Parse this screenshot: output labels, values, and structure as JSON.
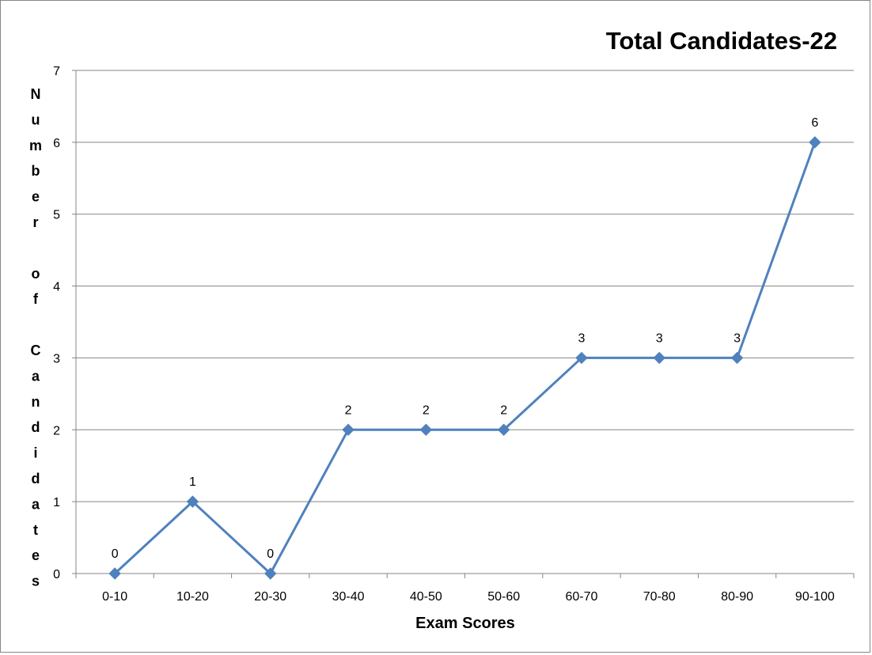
{
  "chart_data": {
    "type": "line",
    "title": "Total Candidates-22",
    "xlabel": "Exam Scores",
    "ylabel": "Number of Candidates",
    "categories": [
      "0-10",
      "10-20",
      "20-30",
      "30-40",
      "40-50",
      "50-60",
      "60-70",
      "70-80",
      "80-90",
      "90-100"
    ],
    "series": [
      {
        "values": [
          0,
          1,
          0,
          2,
          2,
          2,
          3,
          3,
          3,
          6
        ],
        "color": "#4F81BD",
        "marker": "diamond"
      }
    ],
    "ylim": [
      0,
      7
    ],
    "yticks": [
      "0",
      "1",
      "2",
      "3",
      "4",
      "5",
      "6",
      "7"
    ],
    "data_labels": true,
    "grid": {
      "horizontal": true,
      "vertical": false
    },
    "gridline_color": "#868686",
    "legend": "none"
  }
}
